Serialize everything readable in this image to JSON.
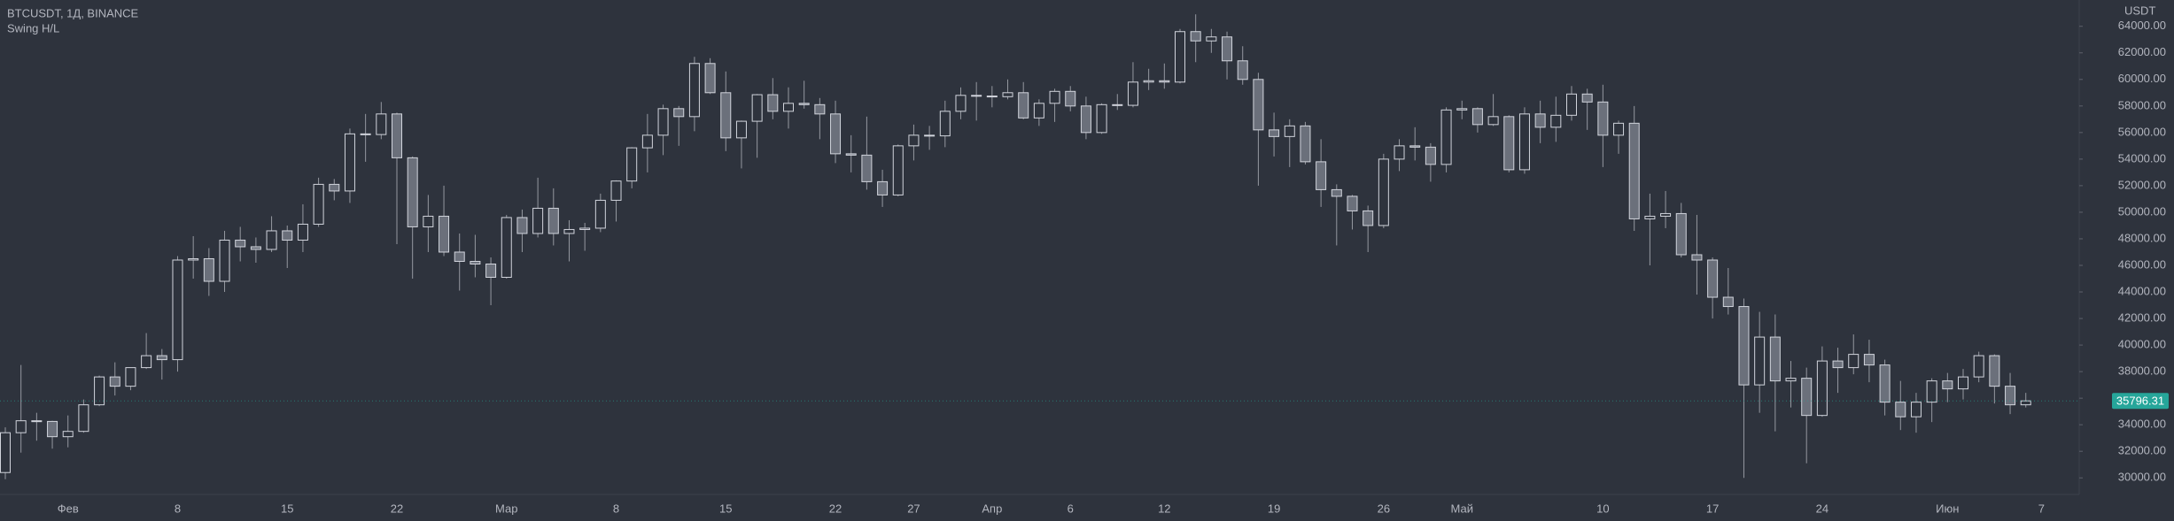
{
  "chart_data": {
    "type": "candlestick",
    "title": "BTCUSDT, 1Д, BINANCE",
    "subtitle": "Swing H/L",
    "y_axis_label": "USDT",
    "categories": [
      null,
      null,
      null,
      null,
      "Фев",
      null,
      null,
      null,
      null,
      null,
      null,
      "8",
      null,
      null,
      null,
      null,
      null,
      null,
      "15",
      null,
      null,
      null,
      null,
      null,
      null,
      "22",
      null,
      null,
      null,
      null,
      null,
      null,
      "Мар",
      null,
      null,
      null,
      null,
      null,
      null,
      "8",
      null,
      null,
      null,
      null,
      null,
      null,
      "15",
      null,
      null,
      null,
      null,
      null,
      null,
      "22",
      null,
      null,
      null,
      null,
      "27",
      null,
      null,
      null,
      null,
      "Апр",
      null,
      null,
      null,
      null,
      "6",
      null,
      null,
      null,
      null,
      null,
      "12",
      null,
      null,
      null,
      null,
      null,
      null,
      "19",
      null,
      null,
      null,
      null,
      null,
      null,
      "26",
      null,
      null,
      null,
      null,
      "Май",
      null,
      null,
      null,
      null,
      null,
      null,
      null,
      null,
      "10",
      null,
      null,
      null,
      null,
      null,
      null,
      "17",
      null,
      null,
      null,
      null,
      null,
      null,
      "24",
      null,
      null,
      null,
      null,
      null,
      null,
      null,
      "Июн",
      null,
      null,
      null,
      null,
      null,
      "7"
    ],
    "open": [
      30400,
      33400,
      34300,
      34250,
      33100,
      33500,
      35500,
      37600,
      36900,
      38300,
      39200,
      38900,
      46400,
      46500,
      44800,
      47900,
      47400,
      47200,
      48600,
      47900,
      49100,
      52100,
      51600,
      55900,
      55850,
      57400,
      54100,
      48900,
      49700,
      47000,
      46300,
      46100,
      45100,
      49600,
      48400,
      50300,
      48400,
      48700,
      48800,
      50900,
      52350,
      54850,
      55800,
      57800,
      57200,
      61200,
      59000,
      55600,
      56850,
      58850,
      57600,
      58200,
      58100,
      57400,
      54400,
      54300,
      52300,
      51300,
      55000,
      55800,
      55750,
      57600,
      58800,
      58750,
      58700,
      59000,
      57100,
      58200,
      59100,
      58000,
      56000,
      58100,
      58050,
      59800,
      59900,
      59800,
      63600,
      62900,
      63200,
      61400,
      60000,
      56200,
      55700,
      56500,
      53800,
      51700,
      51200,
      50100,
      49000,
      54000,
      55000,
      54900,
      53600,
      57700,
      57800,
      56600,
      57200,
      53200,
      57400,
      56400,
      57300,
      58900,
      58300,
      55800,
      56700,
      49500,
      49700,
      49900,
      46800,
      46400,
      43600,
      42900,
      37000,
      40600,
      37300,
      37500,
      34700,
      38800,
      38300,
      39300,
      38500,
      35700,
      34600,
      35700,
      37300,
      36700,
      37600,
      39200,
      36900,
      35500,
      null
    ],
    "high": [
      33800,
      38500,
      34900,
      34300,
      34700,
      35900,
      37700,
      38700,
      38300,
      40900,
      39700,
      46700,
      48200,
      47300,
      48600,
      48900,
      48100,
      49700,
      49000,
      50600,
      52600,
      52500,
      56300,
      57400,
      58300,
      57500,
      54200,
      51300,
      52000,
      48400,
      48300,
      46600,
      49800,
      50200,
      52600,
      51800,
      49400,
      49200,
      51400,
      52400,
      54900,
      57400,
      58100,
      58000,
      61700,
      61600,
      60600,
      56900,
      58900,
      60100,
      59400,
      59900,
      58600,
      58400,
      55800,
      57200,
      53200,
      55100,
      56600,
      56500,
      58400,
      59400,
      59800,
      59500,
      60000,
      59800,
      58500,
      59300,
      59500,
      58700,
      58200,
      58900,
      61300,
      60800,
      61200,
      63800,
      64900,
      63800,
      63600,
      62500,
      60500,
      57500,
      57000,
      56800,
      55500,
      52100,
      51300,
      50500,
      54400,
      55500,
      56400,
      55200,
      57900,
      58400,
      57900,
      58900,
      57300,
      57900,
      58400,
      58700,
      59500,
      59300,
      59600,
      56900,
      58000,
      51400,
      51600,
      50700,
      49800,
      46600,
      45800,
      43500,
      42500,
      42300,
      38800,
      38300,
      39900,
      39800,
      40800,
      40400,
      38900,
      37300,
      36400,
      37500,
      37900,
      38200,
      39500,
      39300,
      37900,
      36400,
      null
    ],
    "low": [
      29900,
      31900,
      32800,
      32200,
      32300,
      33400,
      35400,
      36200,
      36600,
      38200,
      37400,
      38000,
      45000,
      43700,
      44000,
      46300,
      46200,
      47000,
      45800,
      47000,
      48900,
      50900,
      50700,
      53800,
      55500,
      47600,
      45000,
      47000,
      46700,
      44100,
      45100,
      43000,
      45000,
      47000,
      48100,
      47500,
      46300,
      47100,
      48500,
      49300,
      51800,
      53000,
      54300,
      55000,
      56100,
      58900,
      54600,
      53300,
      54100,
      57000,
      56300,
      57800,
      55500,
      53700,
      53000,
      51700,
      50400,
      51200,
      53900,
      54700,
      54900,
      57000,
      56900,
      57900,
      58500,
      57000,
      56500,
      56800,
      57600,
      55500,
      55900,
      57700,
      57900,
      59200,
      59300,
      59700,
      61300,
      62000,
      60000,
      59600,
      52000,
      54200,
      53400,
      53600,
      50400,
      47500,
      48700,
      47000,
      48800,
      53100,
      53900,
      52300,
      53000,
      57000,
      56000,
      56500,
      53000,
      52900,
      55200,
      55300,
      56900,
      56200,
      53400,
      54400,
      48600,
      46000,
      48800,
      46600,
      43800,
      42000,
      42300,
      30000,
      34900,
      33500,
      35300,
      31100,
      34600,
      36400,
      37800,
      37200,
      34700,
      33600,
      33400,
      34200,
      35700,
      35900,
      37200,
      35600,
      34800,
      35300,
      null
    ],
    "close": [
      33400,
      34300,
      34250,
      33100,
      33500,
      35500,
      37600,
      36900,
      38300,
      39200,
      38900,
      46400,
      46500,
      44800,
      47900,
      47400,
      47200,
      48600,
      47900,
      49100,
      52100,
      51600,
      55900,
      55850,
      57400,
      54100,
      48900,
      49700,
      47000,
      46300,
      46100,
      45100,
      49600,
      48400,
      50300,
      48400,
      48700,
      48800,
      50900,
      52350,
      54850,
      55800,
      57800,
      57200,
      61200,
      59000,
      55600,
      56850,
      58850,
      57600,
      58200,
      58100,
      57400,
      54400,
      54300,
      52300,
      51300,
      55000,
      55800,
      55750,
      57600,
      58800,
      58750,
      58700,
      59000,
      57100,
      58200,
      59100,
      58000,
      56000,
      58100,
      58050,
      59800,
      59900,
      59800,
      63600,
      62900,
      63200,
      61400,
      60000,
      56200,
      55700,
      56500,
      53800,
      51700,
      51200,
      50100,
      49000,
      54000,
      55000,
      54900,
      53600,
      57700,
      57800,
      56600,
      57200,
      53200,
      57400,
      56400,
      57300,
      58900,
      58300,
      55800,
      56700,
      49500,
      49700,
      49900,
      46800,
      46400,
      43600,
      42900,
      37000,
      40600,
      37300,
      37500,
      34700,
      38800,
      38300,
      39300,
      38500,
      35700,
      34600,
      35700,
      37300,
      36700,
      37600,
      39200,
      36900,
      35500,
      35796.31,
      null
    ],
    "ylim": [
      28750,
      65980
    ],
    "yticks": [
      {
        "value": 30000,
        "label": "30000.00"
      },
      {
        "value": 32000,
        "label": "32000.00"
      },
      {
        "value": 34000,
        "label": "34000.00"
      },
      {
        "value": 36000,
        "label": "36000.00"
      },
      {
        "value": 38000,
        "label": "38000.00"
      },
      {
        "value": 40000,
        "label": "40000.00"
      },
      {
        "value": 42000,
        "label": "42000.00"
      },
      {
        "value": 44000,
        "label": "44000.00"
      },
      {
        "value": 46000,
        "label": "46000.00"
      },
      {
        "value": 48000,
        "label": "48000.00"
      },
      {
        "value": 50000,
        "label": "50000.00"
      },
      {
        "value": 52000,
        "label": "52000.00"
      },
      {
        "value": 54000,
        "label": "54000.00"
      },
      {
        "value": 56000,
        "label": "56000.00"
      },
      {
        "value": 58000,
        "label": "58000.00"
      },
      {
        "value": 60000,
        "label": "60000.00"
      },
      {
        "value": 62000,
        "label": "62000.00"
      },
      {
        "value": 64000,
        "label": "64000.00"
      }
    ],
    "up_color": "#2e333d",
    "down_color": "#6b707b",
    "candle_border": "#d1d4dc",
    "wick_color": "#9598a1",
    "last_price_color": "#26a69a"
  }
}
